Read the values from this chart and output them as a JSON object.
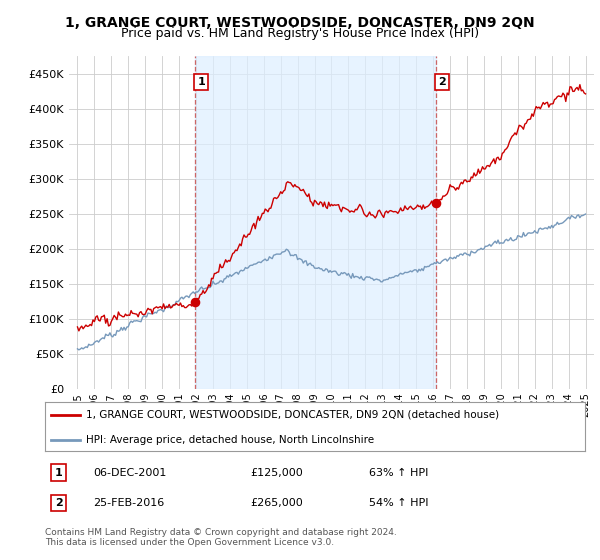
{
  "title": "1, GRANGE COURT, WESTWOODSIDE, DONCASTER, DN9 2QN",
  "subtitle": "Price paid vs. HM Land Registry's House Price Index (HPI)",
  "title_fontsize": 10,
  "subtitle_fontsize": 9,
  "background_color": "#ffffff",
  "plot_bg_color": "#ffffff",
  "grid_color": "#cccccc",
  "shading_color": "#ddeeff",
  "sale1_date": 2001.92,
  "sale1_price": 125000,
  "sale1_label": "1",
  "sale2_date": 2016.15,
  "sale2_price": 265000,
  "sale2_label": "2",
  "red_line_color": "#cc0000",
  "blue_line_color": "#7799bb",
  "dashed_line_color": "#cc6666",
  "ylim": [
    0,
    475000
  ],
  "yticks": [
    0,
    50000,
    100000,
    150000,
    200000,
    250000,
    300000,
    350000,
    400000,
    450000
  ],
  "xlim_start": 1994.5,
  "xlim_end": 2025.5,
  "xticks": [
    1995,
    1996,
    1997,
    1998,
    1999,
    2000,
    2001,
    2002,
    2003,
    2004,
    2005,
    2006,
    2007,
    2008,
    2009,
    2010,
    2011,
    2012,
    2013,
    2014,
    2015,
    2016,
    2017,
    2018,
    2019,
    2020,
    2021,
    2022,
    2023,
    2024,
    2025
  ],
  "legend_label_red": "1, GRANGE COURT, WESTWOODSIDE, DONCASTER, DN9 2QN (detached house)",
  "legend_label_blue": "HPI: Average price, detached house, North Lincolnshire",
  "note1_num": "1",
  "note1_date": "06-DEC-2001",
  "note1_price": "£125,000",
  "note1_hpi": "63% ↑ HPI",
  "note2_num": "2",
  "note2_date": "25-FEB-2016",
  "note2_price": "£265,000",
  "note2_hpi": "54% ↑ HPI",
  "footer": "Contains HM Land Registry data © Crown copyright and database right 2024.\nThis data is licensed under the Open Government Licence v3.0."
}
